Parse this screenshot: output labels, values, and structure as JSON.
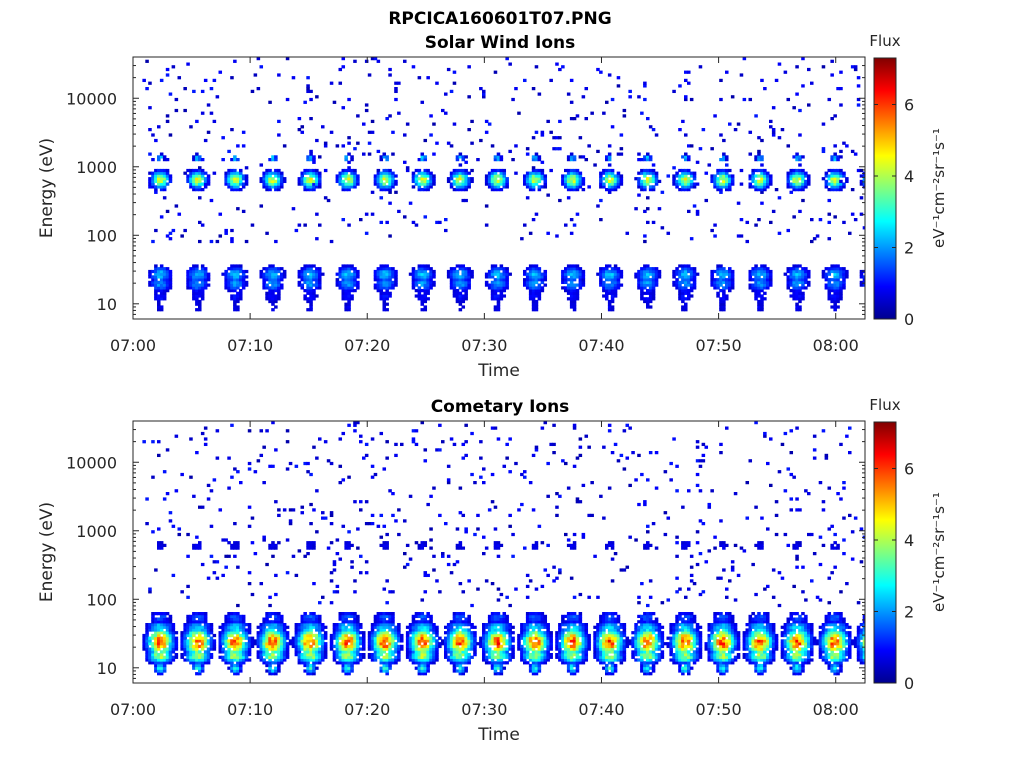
{
  "figure": {
    "title": "RPCICA160601T07.PNG"
  },
  "chart_data": [
    {
      "type": "heatmap",
      "title": "Solar Wind Ions",
      "xlabel": "Time",
      "ylabel": "Energy (eV)",
      "x_ticks": [
        "07:00",
        "07:10",
        "07:20",
        "07:30",
        "07:40",
        "07:50",
        "08:00"
      ],
      "x_range_minutes": [
        0,
        62.5
      ],
      "y_scale": "log",
      "y_range": [
        6,
        40000
      ],
      "y_ticks": [
        10,
        100,
        1000,
        10000
      ],
      "y_tick_labels": [
        "10",
        "100",
        "1000",
        "10000"
      ],
      "colorbar": {
        "title": "Flux",
        "label": "eV⁻¹cm⁻²sr⁻¹s⁻¹",
        "range": [
          0,
          7.3
        ],
        "ticks": [
          0,
          2,
          4,
          6
        ],
        "tick_labels": [
          "0",
          "2",
          "4",
          "6"
        ],
        "colormap": "jet"
      },
      "sweep_period_minutes": 3.2,
      "bursts": [
        {
          "energy": 650,
          "value": 4.3,
          "width_min": 1.6,
          "log_width": 0.12
        },
        {
          "energy": 1350,
          "value": 2.6,
          "width_min": 0.7,
          "log_width": 0.05
        },
        {
          "energy": 27,
          "value": 2.3,
          "width_min": 2.0,
          "log_width": 0.12
        },
        {
          "energy": 20,
          "value": 2.0,
          "width_min": 2.0,
          "log_width": 0.12
        },
        {
          "energy": 13,
          "value": 1.0,
          "width_min": 1.8,
          "log_width": 0.12
        },
        {
          "energy": 9,
          "value": 0.8,
          "width_min": 1.2,
          "log_width": 0.1
        }
      ],
      "grid": false
    },
    {
      "type": "heatmap",
      "title": "Cometary Ions",
      "xlabel": "Time",
      "ylabel": "Energy (eV)",
      "x_ticks": [
        "07:00",
        "07:10",
        "07:20",
        "07:30",
        "07:40",
        "07:50",
        "08:00"
      ],
      "x_range_minutes": [
        0,
        62.5
      ],
      "y_scale": "log",
      "y_range": [
        6,
        40000
      ],
      "y_ticks": [
        10,
        100,
        1000,
        10000
      ],
      "y_tick_labels": [
        "10",
        "100",
        "1000",
        "10000"
      ],
      "colorbar": {
        "title": "Flux",
        "label": "eV⁻¹cm⁻²sr⁻¹s⁻¹",
        "range": [
          0,
          7.3
        ],
        "ticks": [
          0,
          2,
          4,
          6
        ],
        "tick_labels": [
          "0",
          "2",
          "4",
          "6"
        ],
        "colormap": "jet"
      },
      "sweep_period_minutes": 3.2,
      "bursts": [
        {
          "energy": 24,
          "value": 5.8,
          "width_min": 2.2,
          "log_width": 0.2
        },
        {
          "energy": 15,
          "value": 4.0,
          "width_min": 2.2,
          "log_width": 0.1
        },
        {
          "energy": 40,
          "value": 2.5,
          "width_min": 2.4,
          "log_width": 0.08
        },
        {
          "energy": 55,
          "value": 1.6,
          "width_min": 2.0,
          "log_width": 0.08
        },
        {
          "energy": 600,
          "value": 0.8,
          "width_min": 1.5,
          "log_width": 0.12
        },
        {
          "energy": 10,
          "value": 3.0,
          "width_min": 1.0,
          "log_width": 0.08
        }
      ],
      "grid": false
    }
  ]
}
